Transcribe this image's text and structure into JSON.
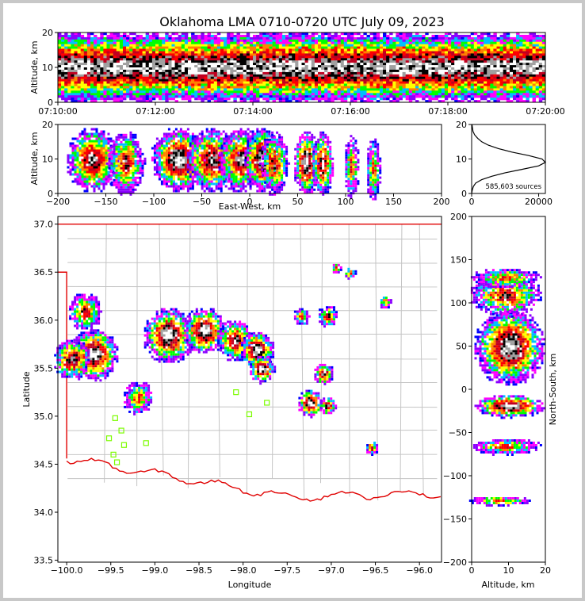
{
  "chart_data": [
    {
      "type": "heatmap",
      "title": "Oklahoma LMA 0710-0720 UTC July 09, 2023",
      "panel": "altitude-time",
      "ylabel": "Altitude, km",
      "yticks": [
        "0",
        "10",
        "20"
      ],
      "ylim": [
        0,
        20
      ],
      "xticks": [
        "07:10:00",
        "07:12:00",
        "07:14:00",
        "07:16:00",
        "07:18:00",
        "07:20:00"
      ],
      "note_bands": [
        {
          "altitude_km": [
            8.5,
            11.5
          ],
          "level": "max"
        },
        {
          "altitude_km": [
            6,
            14
          ],
          "level": "high"
        },
        {
          "altitude_km": [
            2,
            18
          ],
          "level": "medium"
        },
        {
          "altitude_km": [
            0.5,
            20
          ],
          "level": "low"
        }
      ]
    },
    {
      "type": "heatmap",
      "panel": "altitude-eastwest",
      "xlabel": "East-West, km",
      "ylabel": "Altitude, km",
      "xlim": [
        -200,
        200
      ],
      "ylim": [
        0,
        20
      ],
      "xticks": [
        "−200",
        "−150",
        "−100",
        "−50",
        "0",
        "50",
        "100",
        "150",
        "200"
      ],
      "yticks": [
        "0",
        "10",
        "20"
      ],
      "cells": [
        {
          "x": -165,
          "z": 10,
          "r": 28,
          "level": 3
        },
        {
          "x": -130,
          "z": 9,
          "r": 20,
          "level": 2
        },
        {
          "x": -75,
          "z": 10,
          "r": 30,
          "level": 4
        },
        {
          "x": -40,
          "z": 10,
          "r": 28,
          "level": 3
        },
        {
          "x": -10,
          "z": 10,
          "r": 25,
          "level": 3
        },
        {
          "x": 12,
          "z": 10,
          "r": 20,
          "level": 4
        },
        {
          "x": 25,
          "z": 9,
          "r": 15,
          "level": 2
        },
        {
          "x": 58,
          "z": 9,
          "r": 14,
          "level": 4
        },
        {
          "x": 75,
          "z": 9,
          "r": 12,
          "level": 3
        },
        {
          "x": 105,
          "z": 8,
          "r": 8,
          "level": 1
        },
        {
          "x": 128,
          "z": 7,
          "r": 8,
          "level": 1
        }
      ]
    },
    {
      "type": "line",
      "panel": "altitude-histogram",
      "xlim": [
        0,
        22000
      ],
      "ylim": [
        0,
        20
      ],
      "xticks": [
        "0",
        "20000"
      ],
      "yticks": [
        "0",
        "10",
        "20"
      ],
      "annotation": "585,603 sources",
      "series": [
        {
          "x": [
            0,
            200,
            500,
            1200,
            3000,
            6000,
            10000,
            15000,
            20000,
            22000,
            21000,
            17000,
            12000,
            8000,
            5000,
            3000,
            1800,
            900,
            400,
            100
          ],
          "y": [
            0,
            1,
            2,
            3,
            4,
            5,
            6,
            7,
            8,
            9,
            10,
            11,
            12,
            13,
            14,
            15,
            16,
            17,
            18,
            20
          ]
        }
      ]
    },
    {
      "type": "heatmap",
      "panel": "plan-view",
      "xlabel": "Longitude",
      "ylabel": "Latitude",
      "xlim": [
        -100.1,
        -95.75
      ],
      "ylim": [
        33.48,
        37.08
      ],
      "xticks": [
        "−100.0",
        "−99.5",
        "−99.0",
        "−98.5",
        "−98.0",
        "−97.5",
        "−97.0",
        "−96.5",
        "−96.0"
      ],
      "yticks": [
        "33.5",
        "34.0",
        "34.5",
        "35.0",
        "35.5",
        "36.0",
        "36.5",
        "37.0"
      ],
      "cells": [
        {
          "lon": -99.7,
          "lat": 35.65,
          "r": 0.28,
          "level": 4
        },
        {
          "lon": -99.95,
          "lat": 35.6,
          "r": 0.22,
          "level": 3
        },
        {
          "lon": -99.8,
          "lat": 36.1,
          "r": 0.2,
          "level": 2
        },
        {
          "lon": -98.85,
          "lat": 35.85,
          "r": 0.3,
          "level": 4
        },
        {
          "lon": -98.45,
          "lat": 35.9,
          "r": 0.25,
          "level": 4
        },
        {
          "lon": -98.1,
          "lat": 35.8,
          "r": 0.22,
          "level": 3
        },
        {
          "lon": -97.85,
          "lat": 35.7,
          "r": 0.2,
          "level": 4
        },
        {
          "lon": -97.8,
          "lat": 35.5,
          "r": 0.15,
          "level": 4
        },
        {
          "lon": -97.05,
          "lat": 36.05,
          "r": 0.12,
          "level": 2
        },
        {
          "lon": -97.35,
          "lat": 36.05,
          "r": 0.1,
          "level": 1
        },
        {
          "lon": -97.1,
          "lat": 35.45,
          "r": 0.12,
          "level": 3
        },
        {
          "lon": -97.25,
          "lat": 35.15,
          "r": 0.15,
          "level": 4
        },
        {
          "lon": -97.05,
          "lat": 35.12,
          "r": 0.1,
          "level": 3
        },
        {
          "lon": -96.55,
          "lat": 34.68,
          "r": 0.08,
          "level": 2
        },
        {
          "lon": -96.4,
          "lat": 36.2,
          "r": 0.07,
          "level": 1
        },
        {
          "lon": -96.8,
          "lat": 36.5,
          "r": 0.07,
          "level": 1
        },
        {
          "lon": -96.95,
          "lat": 36.55,
          "r": 0.06,
          "level": 1
        },
        {
          "lon": -99.2,
          "lat": 35.2,
          "r": 0.18,
          "level": 1
        }
      ],
      "stations": [
        {
          "lon": -99.45,
          "lat": 34.98
        },
        {
          "lon": -99.38,
          "lat": 34.85
        },
        {
          "lon": -99.52,
          "lat": 34.77
        },
        {
          "lon": -99.35,
          "lat": 34.7
        },
        {
          "lon": -99.1,
          "lat": 34.72
        },
        {
          "lon": -99.47,
          "lat": 34.6
        },
        {
          "lon": -99.43,
          "lat": 34.52
        },
        {
          "lon": -97.93,
          "lat": 35.02
        },
        {
          "lon": -97.73,
          "lat": 35.14
        },
        {
          "lon": -98.08,
          "lat": 35.25
        }
      ]
    },
    {
      "type": "heatmap",
      "panel": "northsouth-altitude",
      "xlabel": "Altitude, km",
      "ylabel": "North-South, km",
      "xlim": [
        0,
        20
      ],
      "ylim": [
        -200,
        200
      ],
      "xticks": [
        "0",
        "10",
        "20"
      ],
      "yticks": [
        "200",
        "150",
        "100",
        "50",
        "0",
        "−50",
        "−100",
        "−150",
        "−200"
      ],
      "cells": [
        {
          "z": 10,
          "y": 50,
          "r": 45,
          "level": 4
        },
        {
          "z": 9,
          "y": 110,
          "r": 25,
          "level": 2
        },
        {
          "z": 9,
          "y": 130,
          "r": 12,
          "level": 1
        },
        {
          "z": 10,
          "y": -18,
          "r": 14,
          "level": 4
        },
        {
          "z": 9,
          "y": -65,
          "r": 10,
          "level": 1
        },
        {
          "z": 7,
          "y": -128,
          "r": 6,
          "level": 1
        }
      ]
    }
  ]
}
